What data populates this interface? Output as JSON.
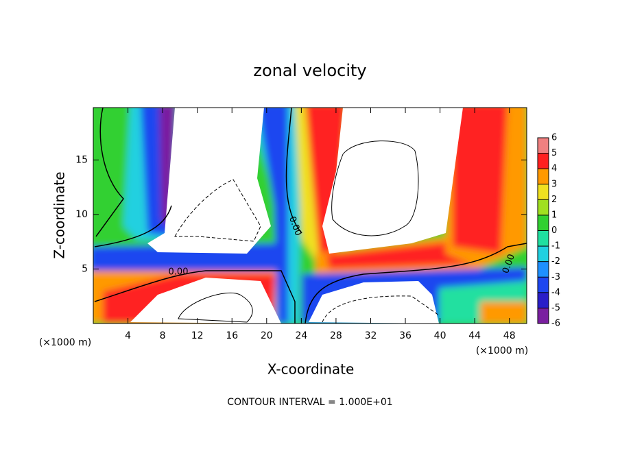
{
  "chart_data": {
    "type": "contour",
    "title": "zonal velocity",
    "x_label": "X-coordinate",
    "y_label": "Z-coordinate",
    "x_unit_label": "(×1000 m)",
    "y_unit_label": "(×1000 m)",
    "footer": "CONTOUR INTERVAL = 1.000E+01",
    "xlim": [
      0,
      50
    ],
    "ylim": [
      0,
      19.8
    ],
    "xticks": [
      4,
      8,
      12,
      16,
      20,
      24,
      28,
      32,
      36,
      40,
      44,
      48
    ],
    "yticks": [
      5,
      10,
      15
    ],
    "contour_labels": [
      "0.00",
      "0.00",
      "0.00"
    ],
    "colorbar": {
      "lim": [
        -6,
        6
      ],
      "ticks": [
        -6,
        -5,
        -4,
        -3,
        -2,
        -1,
        0,
        1,
        2,
        3,
        4,
        5,
        6
      ],
      "colors": [
        "#7a1fa0",
        "#2a1ec8",
        "#1e46f0",
        "#1e90ff",
        "#20d0e0",
        "#20e0a0",
        "#30d030",
        "#a0e020",
        "#f0e020",
        "#ff9900",
        "#ff2020",
        "#f08080"
      ]
    }
  }
}
